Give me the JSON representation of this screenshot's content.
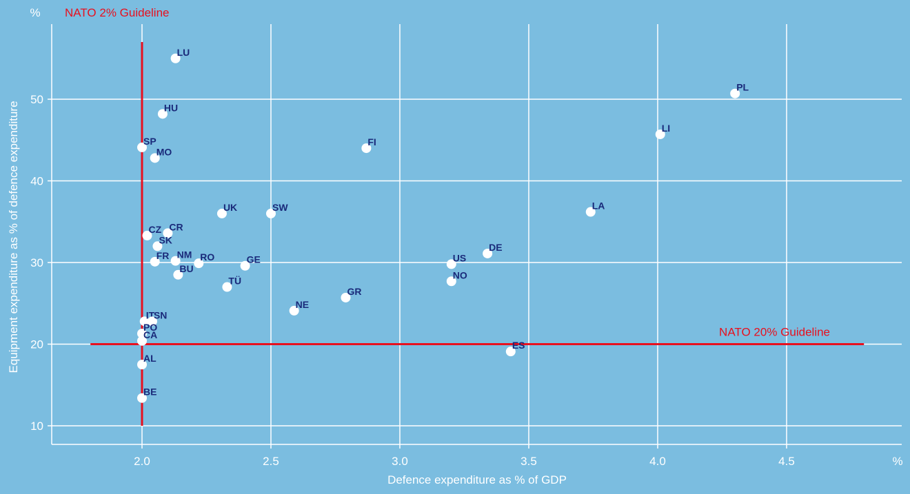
{
  "chart_data": {
    "type": "scatter",
    "xlabel": "Defence expenditure as % of GDP",
    "ylabel": "Equipment expenditure as % of defence expenditure",
    "x_unit": "%",
    "y_unit": "%",
    "xlim": [
      1.65,
      4.6
    ],
    "ylim": [
      8.5,
      58
    ],
    "x_ticks": [
      "2.0",
      "2.5",
      "3.0",
      "3.5",
      "4.0",
      "4.5"
    ],
    "y_ticks": [
      "10",
      "20",
      "30",
      "40",
      "50"
    ],
    "grid": true,
    "colors": {
      "background": "#7bbde0",
      "grid": "#ffffff",
      "point": "#ffffff",
      "point_label": "#1a2a7a",
      "guideline": "#e8101e"
    },
    "guidelines": [
      {
        "label": "NATO 2% Guideline",
        "axis": "x",
        "value": 2.0,
        "from": 10,
        "to": 57
      },
      {
        "label": "NATO 20% Guideline",
        "axis": "y",
        "value": 20,
        "from": 1.8,
        "to": 4.8
      }
    ],
    "points": [
      {
        "label": "LU",
        "x": 2.13,
        "y": 55.0
      },
      {
        "label": "PL",
        "x": 4.3,
        "y": 50.7
      },
      {
        "label": "HU",
        "x": 2.08,
        "y": 48.2
      },
      {
        "label": "LI",
        "x": 4.01,
        "y": 45.7
      },
      {
        "label": "SP",
        "x": 2.0,
        "y": 44.1
      },
      {
        "label": "FI",
        "x": 2.87,
        "y": 44.0
      },
      {
        "label": "MO",
        "x": 2.05,
        "y": 42.8
      },
      {
        "label": "LA",
        "x": 3.74,
        "y": 36.2
      },
      {
        "label": "UK",
        "x": 2.31,
        "y": 36.0
      },
      {
        "label": "SW",
        "x": 2.5,
        "y": 36.0
      },
      {
        "label": "CR",
        "x": 2.1,
        "y": 33.6
      },
      {
        "label": "CZ",
        "x": 2.02,
        "y": 33.3
      },
      {
        "label": "SK",
        "x": 2.06,
        "y": 32.0
      },
      {
        "label": "DE",
        "x": 3.34,
        "y": 31.1
      },
      {
        "label": "NM",
        "x": 2.13,
        "y": 30.2
      },
      {
        "label": "FR",
        "x": 2.05,
        "y": 30.1
      },
      {
        "label": "RO",
        "x": 2.22,
        "y": 29.9
      },
      {
        "label": "US",
        "x": 3.2,
        "y": 29.8
      },
      {
        "label": "GE",
        "x": 2.4,
        "y": 29.6
      },
      {
        "label": "BU",
        "x": 2.14,
        "y": 28.5
      },
      {
        "label": "NO",
        "x": 3.2,
        "y": 27.7
      },
      {
        "label": "TÜ",
        "x": 2.33,
        "y": 27.0
      },
      {
        "label": "GR",
        "x": 2.79,
        "y": 25.7
      },
      {
        "label": "NE",
        "x": 2.59,
        "y": 24.1
      },
      {
        "label": "IT",
        "x": 2.01,
        "y": 22.8
      },
      {
        "label": "SN",
        "x": 2.04,
        "y": 22.8
      },
      {
        "label": "PO",
        "x": 2.0,
        "y": 21.3
      },
      {
        "label": "CA",
        "x": 2.0,
        "y": 20.4
      },
      {
        "label": "ES",
        "x": 3.43,
        "y": 19.1
      },
      {
        "label": "AL",
        "x": 2.0,
        "y": 17.5
      },
      {
        "label": "BE",
        "x": 2.0,
        "y": 13.4
      }
    ]
  }
}
